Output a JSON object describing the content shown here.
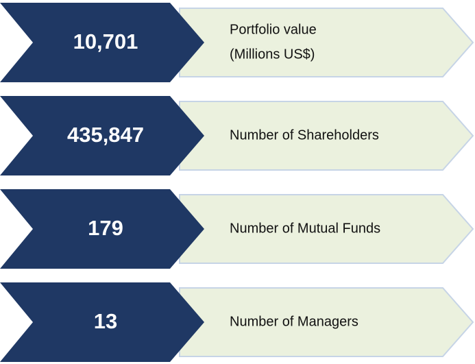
{
  "items": [
    {
      "value": "10,701",
      "label": [
        "Portfolio value",
        "(Millions US$)"
      ]
    },
    {
      "value": "435,847",
      "label": [
        "Number of Shareholders"
      ]
    },
    {
      "value": "179",
      "label": [
        "Number of Mutual Funds"
      ]
    },
    {
      "value": "13",
      "label": [
        "Number of Managers"
      ]
    }
  ]
}
